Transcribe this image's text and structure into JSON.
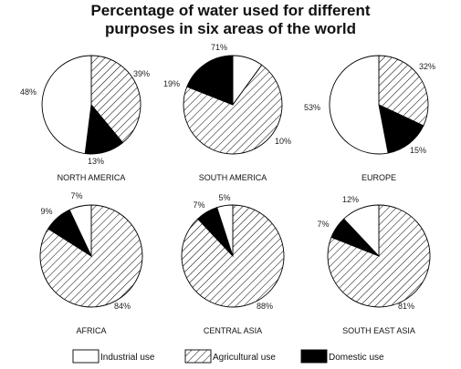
{
  "title_lines": [
    "Percentage of water used for different",
    "purposes in six areas of the world"
  ],
  "colors": {
    "industrial": "#ffffff",
    "agricultural": "hatch",
    "domestic": "#000000",
    "outline": "#000000"
  },
  "legend": [
    {
      "key": "industrial",
      "label": "Industrial use"
    },
    {
      "key": "agricultural",
      "label": "Agricultural use"
    },
    {
      "key": "domestic",
      "label": "Domestic use"
    }
  ],
  "chart_data": [
    {
      "type": "pie",
      "title": "NORTH AMERICA",
      "categories": [
        "Agricultural use",
        "Domestic use",
        "Industrial use"
      ],
      "values": [
        39,
        13,
        48
      ],
      "labels": [
        "39%",
        "13%",
        "48%"
      ]
    },
    {
      "type": "pie",
      "title": "SOUTH AMERICA",
      "categories": [
        "Industrial use",
        "Agricultural use",
        "Domestic use"
      ],
      "values": [
        10,
        71,
        19
      ],
      "labels": [
        "10%",
        "71%",
        "19%"
      ]
    },
    {
      "type": "pie",
      "title": "EUROPE",
      "categories": [
        "Agricultural use",
        "Domestic use",
        "Industrial use"
      ],
      "values": [
        32,
        15,
        53
      ],
      "labels": [
        "32%",
        "15%",
        "53%"
      ]
    },
    {
      "type": "pie",
      "title": "AFRICA",
      "categories": [
        "Agricultural use",
        "Domestic use",
        "Industrial use"
      ],
      "values": [
        84,
        9,
        7
      ],
      "labels": [
        "84%",
        "9%",
        "7%"
      ]
    },
    {
      "type": "pie",
      "title": "CENTRAL ASIA",
      "categories": [
        "Agricultural use",
        "Domestic use",
        "Industrial use"
      ],
      "values": [
        88,
        7,
        5
      ],
      "labels": [
        "88%",
        "7%",
        "5%"
      ]
    },
    {
      "type": "pie",
      "title": "SOUTH EAST ASIA",
      "categories": [
        "Agricultural use",
        "Domestic use",
        "Industrial use"
      ],
      "values": [
        81,
        7,
        12
      ],
      "labels": [
        "81%",
        "7%",
        "12%"
      ]
    }
  ]
}
